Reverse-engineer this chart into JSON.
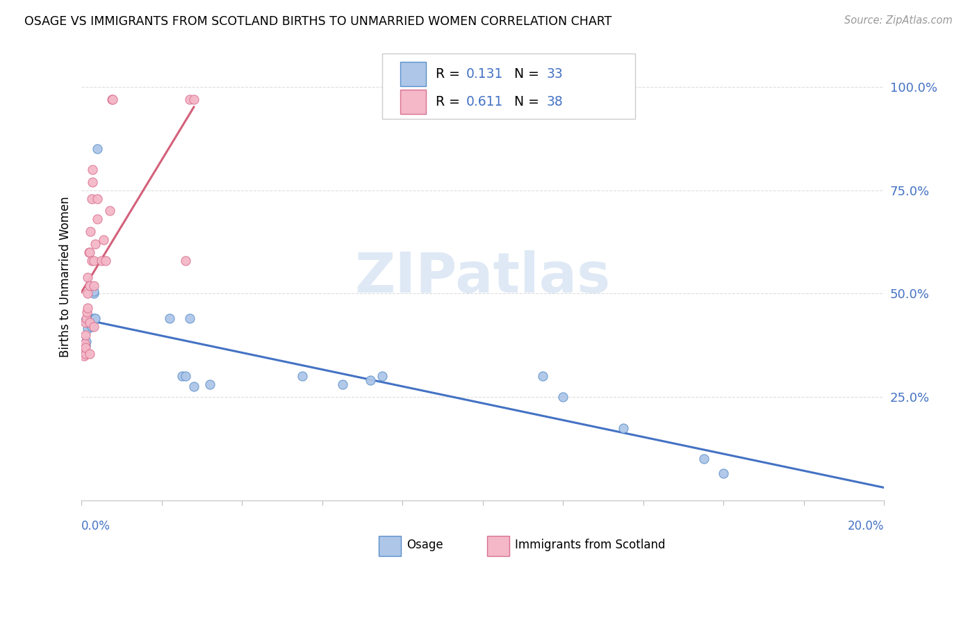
{
  "title": "OSAGE VS IMMIGRANTS FROM SCOTLAND BIRTHS TO UNMARRIED WOMEN CORRELATION CHART",
  "source": "Source: ZipAtlas.com",
  "ylabel": "Births to Unmarried Women",
  "watermark": "ZIPatlas",
  "osage_color": "#aec6e8",
  "scotland_color": "#f4b8c8",
  "osage_edge_color": "#5b8fc9",
  "scotland_edge_color": "#d97090",
  "osage_trend_color": "#4472c4",
  "scotland_trend_color": "#d4607a",
  "R_osage": 0.131,
  "N_osage": 33,
  "R_scotland": 0.611,
  "N_scotland": 38,
  "osage_x": [
    0.0008,
    0.0009,
    0.001,
    0.001,
    0.0012,
    0.0015,
    0.0015,
    0.0018,
    0.002,
    0.002,
    0.0022,
    0.0025,
    0.0025,
    0.003,
    0.003,
    0.0032,
    0.0035,
    0.004,
    0.022,
    0.025,
    0.026,
    0.027,
    0.028,
    0.032,
    0.055,
    0.065,
    0.072,
    0.075,
    0.115,
    0.12,
    0.135,
    0.155,
    0.16
  ],
  "osage_y": [
    0.355,
    0.37,
    0.375,
    0.36,
    0.385,
    0.415,
    0.43,
    0.435,
    0.44,
    0.44,
    0.44,
    0.44,
    0.42,
    0.5,
    0.505,
    0.44,
    0.44,
    0.85,
    0.44,
    0.3,
    0.3,
    0.44,
    0.275,
    0.28,
    0.3,
    0.28,
    0.29,
    0.3,
    0.3,
    0.25,
    0.175,
    0.1,
    0.065
  ],
  "scotland_x": [
    0.0005,
    0.0007,
    0.0008,
    0.0009,
    0.001,
    0.001,
    0.001,
    0.001,
    0.0012,
    0.0013,
    0.0015,
    0.0015,
    0.0016,
    0.0018,
    0.002,
    0.002,
    0.002,
    0.002,
    0.0022,
    0.0025,
    0.0025,
    0.0027,
    0.0028,
    0.003,
    0.003,
    0.003,
    0.0035,
    0.004,
    0.004,
    0.005,
    0.0055,
    0.006,
    0.007,
    0.0075,
    0.0078,
    0.026,
    0.027,
    0.028
  ],
  "scotland_y": [
    0.36,
    0.35,
    0.375,
    0.38,
    0.355,
    0.37,
    0.4,
    0.43,
    0.44,
    0.455,
    0.465,
    0.5,
    0.54,
    0.6,
    0.355,
    0.43,
    0.52,
    0.6,
    0.65,
    0.58,
    0.73,
    0.77,
    0.8,
    0.42,
    0.52,
    0.58,
    0.62,
    0.68,
    0.73,
    0.58,
    0.63,
    0.58,
    0.7,
    0.97,
    0.97,
    0.58,
    0.97,
    0.97
  ],
  "xlim": [
    0.0,
    0.2
  ],
  "ylim": [
    0.0,
    1.08
  ],
  "ytick_values": [
    0.25,
    0.5,
    0.75,
    1.0
  ],
  "ytick_labels": [
    "25.0%",
    "50.0%",
    "75.0%",
    "100.0%"
  ],
  "figsize": [
    14.06,
    8.92
  ],
  "dpi": 100
}
